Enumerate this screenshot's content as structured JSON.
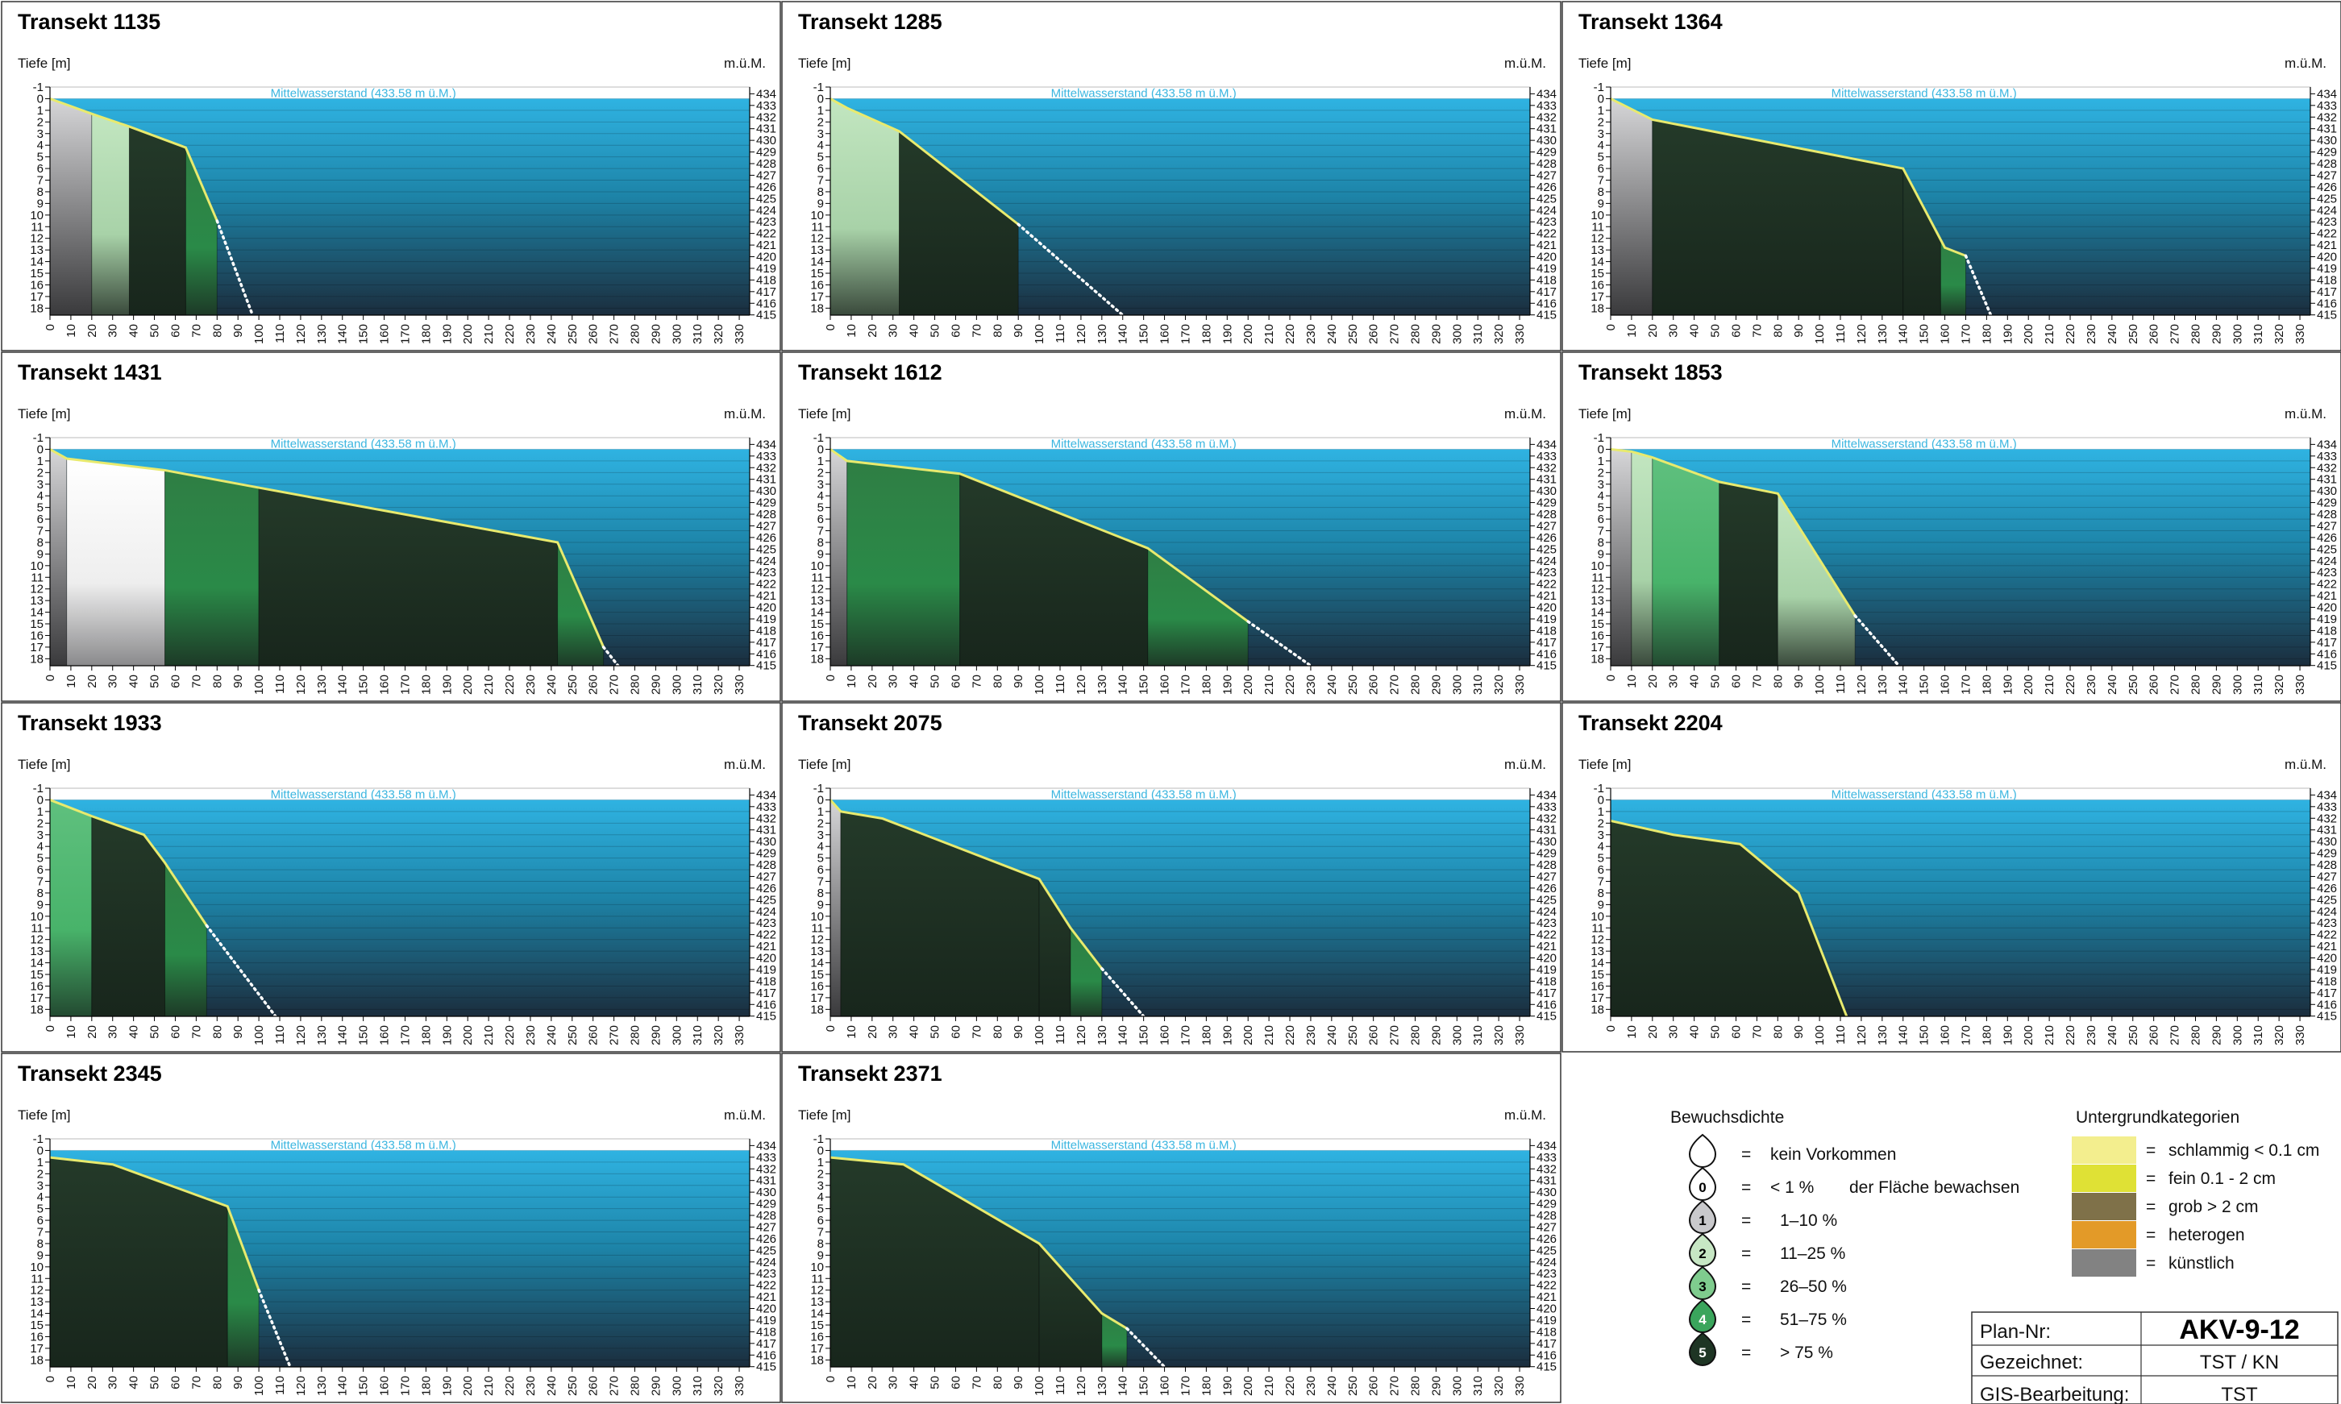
{
  "axes": {
    "depth_label": "Tiefe [m]",
    "elev_label": "m.ü.M.",
    "waterline_label": "Mittelwasserstand (433.58 m ü.M.)",
    "depth_ticks": [
      -1,
      0,
      1,
      2,
      3,
      4,
      5,
      6,
      7,
      8,
      9,
      10,
      11,
      12,
      13,
      14,
      15,
      16,
      17,
      18
    ],
    "elev_ticks": [
      434,
      433,
      432,
      431,
      430,
      429,
      428,
      427,
      426,
      425,
      424,
      423,
      422,
      421,
      420,
      419,
      418,
      417,
      416,
      415
    ],
    "x_ticks": [
      0,
      10,
      20,
      30,
      40,
      50,
      60,
      70,
      80,
      90,
      100,
      110,
      120,
      130,
      140,
      150,
      160,
      170,
      180,
      190,
      200,
      210,
      220,
      230,
      240,
      250,
      260,
      270,
      280,
      290,
      300,
      310,
      320,
      330
    ],
    "xlim": [
      0,
      335
    ],
    "ylim_depth": [
      -1,
      18.6
    ]
  },
  "colors": {
    "water_top": "#2fb3e2",
    "water_bottom": "#1b2d3d",
    "sediment_line": "#e8ea6e",
    "dens0": "#ffffff",
    "dens1": "#c9c9cc",
    "dens2": "#b4dcb4",
    "dens3": "#7fcc8e",
    "dens4": "#3aa55c",
    "dens5": "#1e3524"
  },
  "chart_data": [
    {
      "type": "area",
      "title": "Transekt 1135",
      "x": [
        0,
        20,
        38,
        65,
        80,
        97
      ],
      "y": [
        0,
        1.3,
        2.4,
        4.2,
        10.5,
        18.6
      ],
      "segments": [
        {
          "x0": 0,
          "x1": 20,
          "d": 1
        },
        {
          "x0": 20,
          "x1": 38,
          "d": 2
        },
        {
          "x0": 38,
          "x1": 65,
          "d": 5
        },
        {
          "x0": 65,
          "x1": 80,
          "d": 4
        }
      ],
      "survey_end_x": 80
    },
    {
      "type": "area",
      "title": "Transekt 1285",
      "x": [
        0,
        8,
        33,
        90,
        140
      ],
      "y": [
        0,
        0.8,
        2.8,
        10.8,
        18.6
      ],
      "segments": [
        {
          "x0": 0,
          "x1": 33,
          "d": 2
        },
        {
          "x0": 33,
          "x1": 90,
          "d": 5
        }
      ],
      "survey_end_x": 90
    },
    {
      "type": "area",
      "title": "Transekt 1364",
      "x": [
        0,
        20,
        140,
        160,
        170,
        182
      ],
      "y": [
        0,
        1.8,
        6.0,
        12.8,
        13.5,
        18.6
      ],
      "segments": [
        {
          "x0": 0,
          "x1": 20,
          "d": 1
        },
        {
          "x0": 20,
          "x1": 140,
          "d": 5
        },
        {
          "x0": 140,
          "x1": 158,
          "d": 5
        },
        {
          "x0": 158,
          "x1": 170,
          "d": 4
        }
      ],
      "survey_end_x": 170
    },
    {
      "type": "area",
      "title": "Transekt 1431",
      "x": [
        0,
        8,
        55,
        100,
        243,
        265,
        272
      ],
      "y": [
        0,
        0.8,
        1.8,
        3.3,
        8.0,
        17.0,
        18.6
      ],
      "segments": [
        {
          "x0": 0,
          "x1": 8,
          "d": 1
        },
        {
          "x0": 8,
          "x1": 55,
          "d": 0
        },
        {
          "x0": 55,
          "x1": 100,
          "d": 4
        },
        {
          "x0": 100,
          "x1": 243,
          "d": 5
        },
        {
          "x0": 243,
          "x1": 265,
          "d": 4
        }
      ],
      "survey_end_x": 265
    },
    {
      "type": "area",
      "title": "Transekt 1612",
      "x": [
        0,
        8,
        62,
        152,
        200,
        230
      ],
      "y": [
        0,
        1.0,
        2.1,
        8.5,
        14.8,
        18.6
      ],
      "segments": [
        {
          "x0": 0,
          "x1": 8,
          "d": 1
        },
        {
          "x0": 8,
          "x1": 62,
          "d": 4
        },
        {
          "x0": 62,
          "x1": 152,
          "d": 5
        },
        {
          "x0": 152,
          "x1": 200,
          "d": 4
        }
      ],
      "survey_end_x": 200
    },
    {
      "type": "area",
      "title": "Transekt 1853",
      "x": [
        0,
        10,
        20,
        52,
        80,
        117,
        138
      ],
      "y": [
        0,
        0.2,
        0.7,
        2.8,
        3.8,
        14.3,
        18.6
      ],
      "segments": [
        {
          "x0": 0,
          "x1": 10,
          "d": 1
        },
        {
          "x0": 10,
          "x1": 20,
          "d": 2
        },
        {
          "x0": 20,
          "x1": 52,
          "d": 3
        },
        {
          "x0": 52,
          "x1": 80,
          "d": 5
        },
        {
          "x0": 80,
          "x1": 117,
          "d": 2
        }
      ],
      "survey_end_x": 117
    },
    {
      "type": "area",
      "title": "Transekt 1933",
      "x": [
        0,
        20,
        45,
        55,
        75,
        108
      ],
      "y": [
        0,
        1.4,
        3.0,
        5.4,
        10.8,
        18.6
      ],
      "segments": [
        {
          "x0": 0,
          "x1": 20,
          "d": 3
        },
        {
          "x0": 20,
          "x1": 55,
          "d": 5
        },
        {
          "x0": 55,
          "x1": 75,
          "d": 4
        }
      ],
      "survey_end_x": 75
    },
    {
      "type": "area",
      "title": "Transekt 2075",
      "x": [
        0,
        5,
        25,
        100,
        115,
        130,
        150
      ],
      "y": [
        0,
        1.0,
        1.6,
        6.8,
        11.0,
        14.5,
        18.6
      ],
      "segments": [
        {
          "x0": 0,
          "x1": 5,
          "d": 1
        },
        {
          "x0": 5,
          "x1": 100,
          "d": 5
        },
        {
          "x0": 100,
          "x1": 115,
          "d": 5
        },
        {
          "x0": 115,
          "x1": 130,
          "d": 4
        }
      ],
      "survey_end_x": 130
    },
    {
      "type": "area",
      "title": "Transekt 2204",
      "x": [
        0,
        30,
        62,
        90,
        113
      ],
      "y": [
        1.8,
        3.0,
        3.8,
        8.0,
        18.6
      ],
      "segments": [
        {
          "x0": 0,
          "x1": 113,
          "d": 5
        }
      ],
      "survey_end_x": 113
    },
    {
      "type": "area",
      "title": "Transekt 2345",
      "x": [
        0,
        30,
        85,
        100,
        115
      ],
      "y": [
        0.6,
        1.2,
        4.8,
        12.0,
        18.6
      ],
      "segments": [
        {
          "x0": 0,
          "x1": 85,
          "d": 5
        },
        {
          "x0": 85,
          "x1": 100,
          "d": 4
        }
      ],
      "survey_end_x": 100
    },
    {
      "type": "area",
      "title": "Transekt 2371",
      "x": [
        0,
        35,
        100,
        130,
        142,
        160
      ],
      "y": [
        0.6,
        1.2,
        8.0,
        14.0,
        15.3,
        18.6
      ],
      "segments": [
        {
          "x0": 0,
          "x1": 100,
          "d": 5
        },
        {
          "x0": 100,
          "x1": 130,
          "d": 5
        },
        {
          "x0": 130,
          "x1": 142,
          "d": 4
        }
      ],
      "survey_end_x": 142
    }
  ],
  "legend": {
    "density_title": "Bewuchsdichte",
    "density": [
      {
        "num": "",
        "eq": "=",
        "label": "kein Vorkommen",
        "note": ""
      },
      {
        "num": "0",
        "eq": "=",
        "label": "< 1 %",
        "note": "der Fläche bewachsen"
      },
      {
        "num": "1",
        "eq": "=",
        "label": "1–10 %",
        "note": ""
      },
      {
        "num": "2",
        "eq": "=",
        "label": "11–25 %",
        "note": ""
      },
      {
        "num": "3",
        "eq": "=",
        "label": "26–50 %",
        "note": ""
      },
      {
        "num": "4",
        "eq": "=",
        "label": "51–75 %",
        "note": ""
      },
      {
        "num": "5",
        "eq": "=",
        "label": "> 75 %",
        "note": ""
      }
    ],
    "ground_title": "Untergrundkategorien",
    "ground": [
      {
        "color": "#f3ee8e",
        "eq": "=",
        "label": "schlammig < 0.1 cm"
      },
      {
        "color": "#dfe135",
        "eq": "=",
        "label": "fein 0.1 - 2 cm"
      },
      {
        "color": "#7f7149",
        "eq": "=",
        "label": "grob > 2 cm"
      },
      {
        "color": "#e39a28",
        "eq": "=",
        "label": "heterogen"
      },
      {
        "color": "#828282",
        "eq": "=",
        "label": "künstlich"
      }
    ]
  },
  "titleblock": {
    "plan_label": "Plan-Nr:",
    "plan_value": "AKV-9-12",
    "drawn_label": "Gezeichnet:",
    "drawn_value": "TST / KN",
    "gis_label": "GIS-Bearbeitung:",
    "gis_value": "TST"
  }
}
